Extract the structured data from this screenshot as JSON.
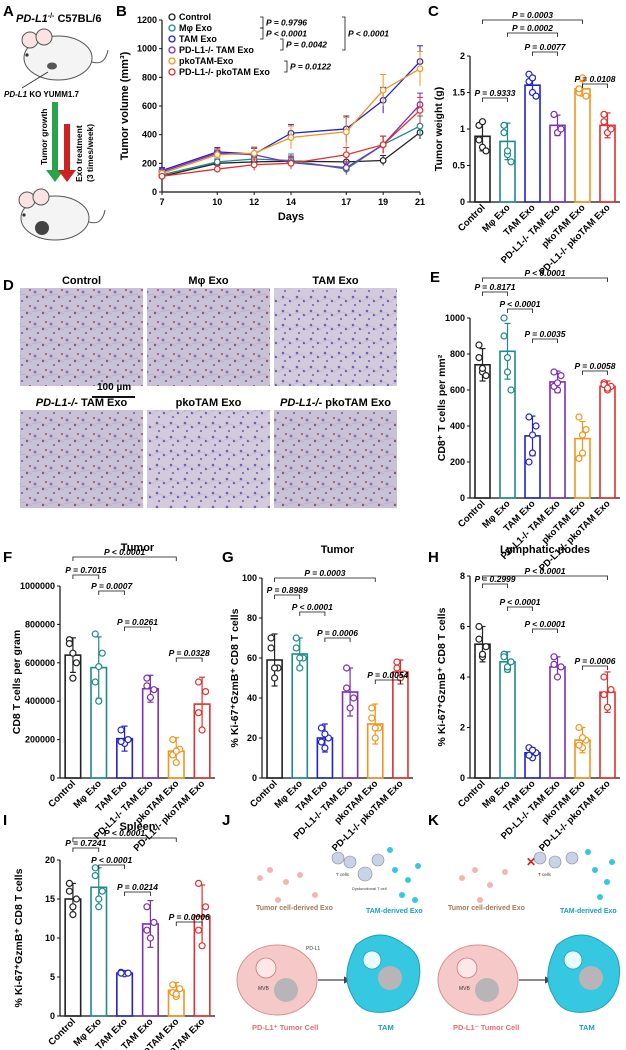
{
  "panel_letters": [
    "A",
    "B",
    "C",
    "D",
    "E",
    "F",
    "G",
    "H",
    "I",
    "J",
    "K"
  ],
  "colors": {
    "control": "#222222",
    "mphi": "#1e8a8a",
    "tam": "#2222cc",
    "pdl1_tam": "#7a2fb5",
    "pko_tam": "#f0951e",
    "pdl1_pko": "#e03030",
    "arrow_green": "#2aa34a",
    "arrow_red": "#cc2222",
    "tumor_cell": "#f6c9c9",
    "tam_cell": "#36c8e0"
  },
  "panel_a": {
    "title_gene": "PD-L1",
    "title_sup": "-/-",
    "title_rest": " C57BL/6",
    "label_gene": "PD-L1",
    "label_rest": " KO YUMM1.7",
    "arrow_green_label": "Tumor growth",
    "arrow_red_label_1": "Exo treatment",
    "arrow_red_label_2": "(3 times/week)"
  },
  "panel_d": {
    "tiles": [
      {
        "title": "Control",
        "ital": ""
      },
      {
        "title": "Mφ Exo",
        "ital": ""
      },
      {
        "title": "TAM Exo",
        "ital": ""
      },
      {
        "title": "TAM Exo",
        "ital": "PD-L1-/- "
      },
      {
        "title": "pkoTAM Exo",
        "ital": ""
      },
      {
        "title": "pkoTAM Exo",
        "ital": "PD-L1-/- "
      }
    ],
    "scale_bar": "100 µm"
  },
  "panel_j": {
    "tumor_exo": "Tumor cell-derived Exo",
    "tam_exo": "TAM-derived Exo",
    "tumor_cell": "PD-L1⁺ Tumor Cell",
    "tam": "TAM",
    "t_cells": "T cells",
    "dys_t": "Dysfunctional T cell",
    "mvb": "MVB",
    "pdl1": "PD-L1"
  },
  "panel_k": {
    "tumor_exo": "Tumor cell-derived Exo",
    "tam_exo": "TAM-derived Exo",
    "tumor_cell": "PD-L1⁻ Tumor Cell",
    "tam": "TAM",
    "t_cells": "T cells",
    "mvb": "MVB"
  },
  "chart_data": [
    {
      "panel": "B",
      "type": "line",
      "title": "",
      "xlabel": "Days",
      "ylabel": "Tumor volume (mm³)",
      "x": [
        7,
        10,
        12,
        14,
        17,
        19,
        21
      ],
      "xlim": [
        7,
        21
      ],
      "ylim": [
        0,
        1200
      ],
      "yticks": [
        0,
        200,
        400,
        600,
        800,
        1000,
        1200
      ],
      "series": [
        {
          "name": "Control",
          "color": "#222222",
          "values": [
            110,
            200,
            210,
            215,
            210,
            220,
            415
          ],
          "err": [
            15,
            30,
            35,
            35,
            40,
            35,
            45
          ]
        },
        {
          "name": "Mφ Exo",
          "color": "#1e8a8a",
          "values": [
            120,
            210,
            230,
            220,
            160,
            330,
            460
          ],
          "err": [
            15,
            35,
            40,
            45,
            40,
            60,
            70
          ]
        },
        {
          "name": "TAM Exo",
          "color": "#2222cc",
          "values": [
            150,
            280,
            265,
            410,
            440,
            640,
            910
          ],
          "err": [
            20,
            30,
            40,
            60,
            90,
            90,
            110
          ]
        },
        {
          "name": "PD-L1-/- TAM Exo",
          "color": "#7a2fb5",
          "values": [
            140,
            270,
            260,
            205,
            170,
            330,
            610
          ],
          "err": [
            20,
            30,
            50,
            45,
            40,
            60,
            80
          ]
        },
        {
          "name": "pkoTAM-Exo",
          "color": "#f0951e",
          "values": [
            130,
            260,
            270,
            380,
            420,
            710,
            860
          ],
          "err": [
            20,
            35,
            45,
            80,
            100,
            110,
            120
          ]
        },
        {
          "name": "PD-L1-/- pkoTAM Exo",
          "color": "#e03030",
          "values": [
            110,
            160,
            190,
            200,
            260,
            330,
            570
          ],
          "err": [
            15,
            25,
            40,
            40,
            50,
            60,
            90
          ]
        }
      ],
      "pvalues": [
        "P = 0.9796",
        "P < 0.0001",
        "P = 0.0042",
        "P < 0.0001",
        "P = 0.0122"
      ]
    },
    {
      "panel": "C",
      "type": "bar",
      "title": "",
      "ylabel": "Tumor weight (g)",
      "ylim": [
        0,
        2.0
      ],
      "yticks": [
        0.0,
        0.5,
        1.0,
        1.5,
        2.0
      ],
      "categories": [
        "Control",
        "Mφ Exo",
        "TAM Exo",
        "PD-L1-/- TAM Exo",
        "pkoTAM Exo",
        "PD-L1-/- pkoTAM Exo"
      ],
      "values": [
        0.9,
        0.83,
        1.6,
        1.05,
        1.55,
        1.05
      ],
      "err": [
        0.2,
        0.25,
        0.13,
        0.14,
        0.1,
        0.17
      ],
      "points": [
        [
          1.05,
          0.75,
          0.7,
          0.85,
          1.1
        ],
        [
          1.05,
          0.65,
          0.55,
          0.95,
          0.7
        ],
        [
          1.75,
          1.5,
          1.45,
          1.65,
          1.7
        ],
        [
          1.2,
          0.95,
          1.0
        ],
        [
          1.5,
          1.7,
          1.45,
          1.55
        ],
        [
          1.2,
          0.95,
          1.0,
          1.1
        ]
      ],
      "pvalues": [
        "P = 0.9333",
        "P = 0.0003",
        "P = 0.0002",
        "P = 0.0077",
        "P = 0.0108"
      ]
    },
    {
      "panel": "E",
      "type": "bar",
      "title": "",
      "ylabel": "CD8⁺ T cells per mm²",
      "ylim": [
        0,
        1000
      ],
      "yticks": [
        0,
        200,
        400,
        600,
        800,
        1000
      ],
      "categories": [
        "Control",
        "Mφ Exo",
        "TAM Exo",
        "PD-L1-/- TAM Exo",
        "pkoTAM Exo",
        "PD-L1-/- pkoTAM Exo"
      ],
      "values": [
        740,
        815,
        345,
        645,
        330,
        620
      ],
      "err": [
        90,
        155,
        110,
        60,
        95,
        30
      ],
      "points": [
        [
          850,
          700,
          680,
          780,
          720
        ],
        [
          1000,
          700,
          600,
          900,
          780
        ],
        [
          450,
          250,
          400,
          200,
          350
        ],
        [
          700,
          600,
          680,
          620,
          640
        ],
        [
          450,
          250,
          380,
          220,
          350
        ],
        [
          640,
          600,
          620,
          630,
          610
        ]
      ],
      "pvalues": [
        "P = 0.8171",
        "P < 0.0001",
        "P < 0.0001",
        "P = 0.0035",
        "P = 0.0058"
      ]
    },
    {
      "panel": "F",
      "type": "bar",
      "title": "Tumor",
      "ylabel": "CD8 T cells per gram",
      "ylim": [
        0,
        1000000
      ],
      "yticks": [
        0,
        200000,
        400000,
        600000,
        800000,
        1000000
      ],
      "categories": [
        "Control",
        "Mφ Exo",
        "TAM Exo",
        "PD-L1-/- TAM Exo",
        "pkoTAM Exo",
        "PD-L1-/- pkoTAM Exo"
      ],
      "values": [
        640000,
        575000,
        205000,
        465000,
        140000,
        385000
      ],
      "err": [
        90000,
        160000,
        65000,
        70000,
        70000,
        140000
      ],
      "points": [
        [
          720000,
          520000,
          600000,
          700000,
          650000
        ],
        [
          750000,
          400000,
          650000,
          500000,
          580000
        ],
        [
          250000,
          180000,
          200000,
          190000
        ],
        [
          520000,
          420000,
          460000,
          480000
        ],
        [
          200000,
          80000,
          150000,
          120000,
          140000
        ],
        [
          500000,
          250000,
          450000,
          340000
        ]
      ],
      "pvalues": [
        "P = 0.7015",
        "P < 0.0001",
        "P = 0.0007",
        "P = 0.0261",
        "P = 0.0328"
      ]
    },
    {
      "panel": "G",
      "type": "bar",
      "title": "Tumor",
      "ylabel": "% Ki-67⁺GzmB⁺ CD8 T cells",
      "ylim": [
        0,
        100
      ],
      "yticks": [
        0,
        20,
        40,
        60,
        80,
        100
      ],
      "categories": [
        "Control",
        "Mφ Exo",
        "TAM Exo",
        "PD-L1-/- TAM Exo",
        "pkoTAM Exo",
        "PD-L1-/- pkoTAM Exo"
      ],
      "values": [
        59,
        62,
        20,
        43,
        27,
        53
      ],
      "err": [
        13,
        8,
        7,
        12,
        10,
        6
      ],
      "points": [
        [
          70,
          50,
          55,
          65,
          55
        ],
        [
          70,
          55,
          60,
          65,
          60
        ],
        [
          25,
          15,
          20,
          18,
          22
        ],
        [
          55,
          35,
          40,
          45
        ],
        [
          35,
          20,
          25,
          30,
          25
        ],
        [
          58,
          50,
          52,
          55
        ]
      ],
      "pvalues": [
        "P = 0.8989",
        "P = 0.0003",
        "P < 0.0001",
        "P = 0.0006",
        "P = 0.0054"
      ]
    },
    {
      "panel": "H",
      "type": "bar",
      "title": "Lymphatic nodes",
      "ylabel": "% Ki-67⁺GzmB⁺ CD8 T cells",
      "ylim": [
        0,
        8
      ],
      "yticks": [
        0,
        2,
        4,
        6,
        8
      ],
      "categories": [
        "Control",
        "Mφ Exo",
        "TAM Exo",
        "PD-L1-/- TAM Exo",
        "pkoTAM Exo",
        "PD-L1-/- pkoTAM Exo"
      ],
      "values": [
        5.3,
        4.6,
        1.0,
        4.4,
        1.5,
        3.4
      ],
      "err": [
        0.7,
        0.4,
        0.2,
        0.4,
        0.5,
        0.8
      ],
      "points": [
        [
          6.0,
          4.8,
          5.2,
          5.5,
          4.9
        ],
        [
          4.9,
          4.3,
          4.6,
          4.8,
          4.4
        ],
        [
          1.2,
          0.8,
          1.0,
          0.9,
          1.1
        ],
        [
          4.8,
          4.0,
          4.4,
          4.5
        ],
        [
          2.0,
          1.2,
          1.5,
          1.3,
          1.6
        ],
        [
          4.0,
          2.8,
          3.5,
          3.3
        ]
      ],
      "pvalues": [
        "P = 0.2999",
        "P < 0.0001",
        "P < 0.0001",
        "P < 0.0001",
        "P = 0.0006"
      ]
    },
    {
      "panel": "I",
      "type": "bar",
      "title": "Spleen",
      "ylabel": "% Ki-67⁺GzmB⁺ CD8 T cells",
      "ylim": [
        0,
        20
      ],
      "yticks": [
        0,
        5,
        10,
        15,
        20
      ],
      "categories": [
        "Control",
        "Mφ Exo",
        "TAM Exo",
        "PD-L1-/- TAM Exo",
        "pkoTAM Exo",
        "PD-L1-/- pkoTAM Exo"
      ],
      "values": [
        15,
        16.5,
        5.5,
        11.8,
        3.3,
        12.8
      ],
      "err": [
        2,
        2.5,
        0.3,
        3,
        1,
        4
      ],
      "points": [
        [
          17,
          13,
          15,
          16,
          14
        ],
        [
          19,
          14,
          16,
          18,
          15
        ],
        [
          5.6,
          5.4,
          5.5,
          5.5
        ],
        [
          14,
          10,
          12,
          11
        ],
        [
          4,
          2.5,
          3.5,
          3,
          2.8
        ],
        [
          17,
          9,
          14,
          11
        ]
      ],
      "pvalues": [
        "P = 0.7241",
        "P < 0.0001",
        "P < 0.0001",
        "P = 0.0214",
        "P = 0.0006"
      ]
    }
  ]
}
